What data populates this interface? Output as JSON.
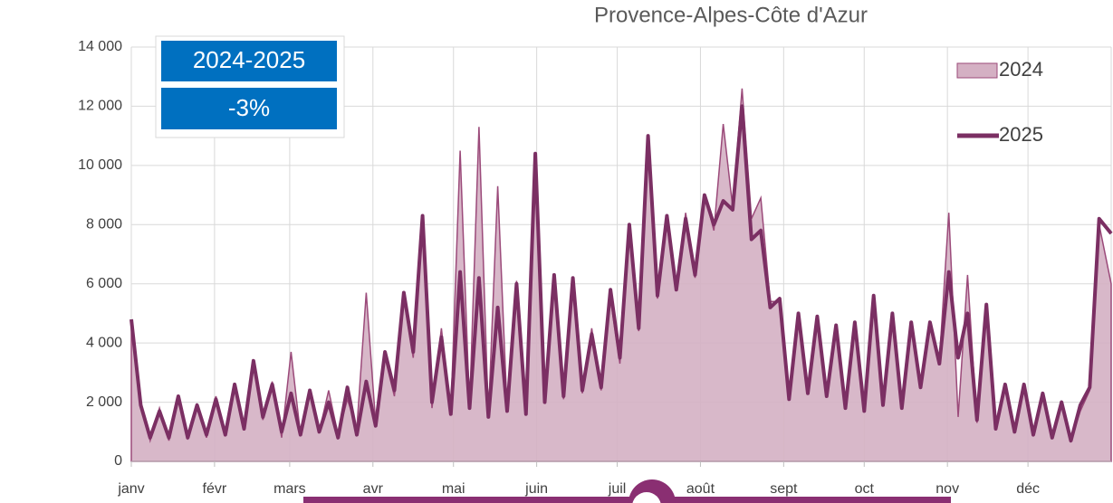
{
  "chart_data": {
    "type": "line",
    "title": "Provence-Alpes-Côte d'Azur",
    "annotations": [
      "2024-2025",
      "-3%"
    ],
    "xlim": [
      0,
      365
    ],
    "xticks": [
      {
        "value": 0,
        "label": "janv"
      },
      {
        "value": 31,
        "label": "févr"
      },
      {
        "value": 59,
        "label": "mars"
      },
      {
        "value": 90,
        "label": "avr"
      },
      {
        "value": 120,
        "label": "mai"
      },
      {
        "value": 151,
        "label": "juin"
      },
      {
        "value": 181,
        "label": "juil"
      },
      {
        "value": 212,
        "label": "août"
      },
      {
        "value": 243,
        "label": "sept"
      },
      {
        "value": 273,
        "label": "oct"
      },
      {
        "value": 304,
        "label": "nov"
      },
      {
        "value": 334,
        "label": "déc"
      }
    ],
    "ylim": [
      0,
      14000
    ],
    "yticks": [
      0,
      {
        "value": 2000,
        "label": "2 000"
      },
      {
        "value": 4000,
        "label": "4 000"
      },
      {
        "value": 6000,
        "label": "6 000"
      },
      {
        "value": 8000,
        "label": "8 000"
      },
      {
        "value": 10000,
        "label": "10 000"
      },
      {
        "value": 12000,
        "label": "12 000"
      },
      {
        "value": 14000,
        "label": "14 000"
      }
    ],
    "grid": true,
    "legend": "top-right",
    "x": [
      0,
      3.5,
      7,
      10.5,
      14,
      17.5,
      21,
      24.5,
      28,
      31.5,
      35,
      38.5,
      42,
      45.5,
      49,
      52.5,
      56,
      59.5,
      63,
      66.5,
      70,
      73.5,
      77,
      80.5,
      84,
      87.5,
      91,
      94.5,
      98,
      101.5,
      105,
      108.5,
      112,
      115.5,
      119,
      122.5,
      126,
      129.5,
      133,
      136.5,
      140,
      143.5,
      147,
      150.5,
      154,
      157.5,
      161,
      164.5,
      168,
      171.5,
      175,
      178.5,
      182,
      185.5,
      189,
      192.5,
      196,
      199.5,
      203,
      206.5,
      210,
      213.5,
      217,
      220.5,
      224,
      227.5,
      231,
      234.5,
      238,
      241.5,
      245,
      248.5,
      252,
      255.5,
      259,
      262.5,
      266,
      269.5,
      273,
      276.5,
      280,
      283.5,
      287,
      290.5,
      294,
      297.5,
      301,
      304.5,
      308,
      311.5,
      315,
      318.5,
      322,
      325.5,
      329,
      332.5,
      336,
      339.5,
      343,
      346.5,
      350,
      353.5,
      357,
      360.5,
      365
    ],
    "series": [
      {
        "name": "2024",
        "style": "area",
        "color": "#d4b0c3",
        "line_color": "#9b4a7a",
        "values": [
          4500,
          2000,
          700,
          1800,
          700,
          2100,
          800,
          1900,
          800,
          2200,
          1000,
          2500,
          1200,
          3200,
          1400,
          2700,
          800,
          3700,
          900,
          2300,
          1000,
          2400,
          900,
          2100,
          1100,
          5700,
          1300,
          3500,
          2200,
          5500,
          3500,
          8000,
          1800,
          4500,
          1600,
          10500,
          1800,
          11300,
          1500,
          9300,
          1700,
          6100,
          1700,
          9800,
          2000,
          6200,
          2100,
          6000,
          2300,
          4500,
          2400,
          5500,
          3300,
          7800,
          4400,
          10800,
          5500,
          8000,
          5800,
          8400,
          6200,
          9000,
          7800,
          11400,
          8600,
          12600,
          8200,
          8900,
          5400,
          5400,
          2200,
          4800,
          2400,
          4700,
          2300,
          4500,
          1900,
          4600,
          1800,
          5400,
          2000,
          4800,
          1900,
          4500,
          2600,
          4600,
          3400,
          8400,
          1500,
          6300,
          1300,
          5000,
          1100,
          2500,
          1000,
          2500,
          900,
          2200,
          800,
          1900,
          700,
          1700,
          2400,
          8000,
          6000
        ]
      },
      {
        "name": "2025",
        "style": "line",
        "color": "#7b2f63",
        "values": [
          4800,
          1900,
          800,
          1700,
          800,
          2200,
          800,
          1900,
          900,
          2100,
          900,
          2600,
          1100,
          3400,
          1500,
          2600,
          1000,
          2300,
          900,
          2400,
          1000,
          2000,
          800,
          2500,
          900,
          2700,
          1200,
          3700,
          2400,
          5700,
          3700,
          8300,
          2000,
          4200,
          1600,
          6400,
          1800,
          6200,
          1500,
          5200,
          1700,
          6000,
          1600,
          10400,
          2000,
          6300,
          2200,
          6200,
          2400,
          4300,
          2500,
          5800,
          3500,
          8000,
          4500,
          11000,
          5600,
          8300,
          5800,
          8200,
          6300,
          9000,
          8000,
          8800,
          8500,
          12000,
          7500,
          7800,
          5200,
          5500,
          2100,
          5000,
          2300,
          4900,
          2200,
          4600,
          1800,
          4700,
          1700,
          5600,
          1900,
          5000,
          1800,
          4700,
          2500,
          4700,
          3300,
          6400,
          3500,
          5000,
          1400,
          5300,
          1100,
          2600,
          1000,
          2600,
          900,
          2300,
          800,
          2000,
          700,
          1900,
          2500,
          8200,
          7700
        ]
      }
    ]
  }
}
